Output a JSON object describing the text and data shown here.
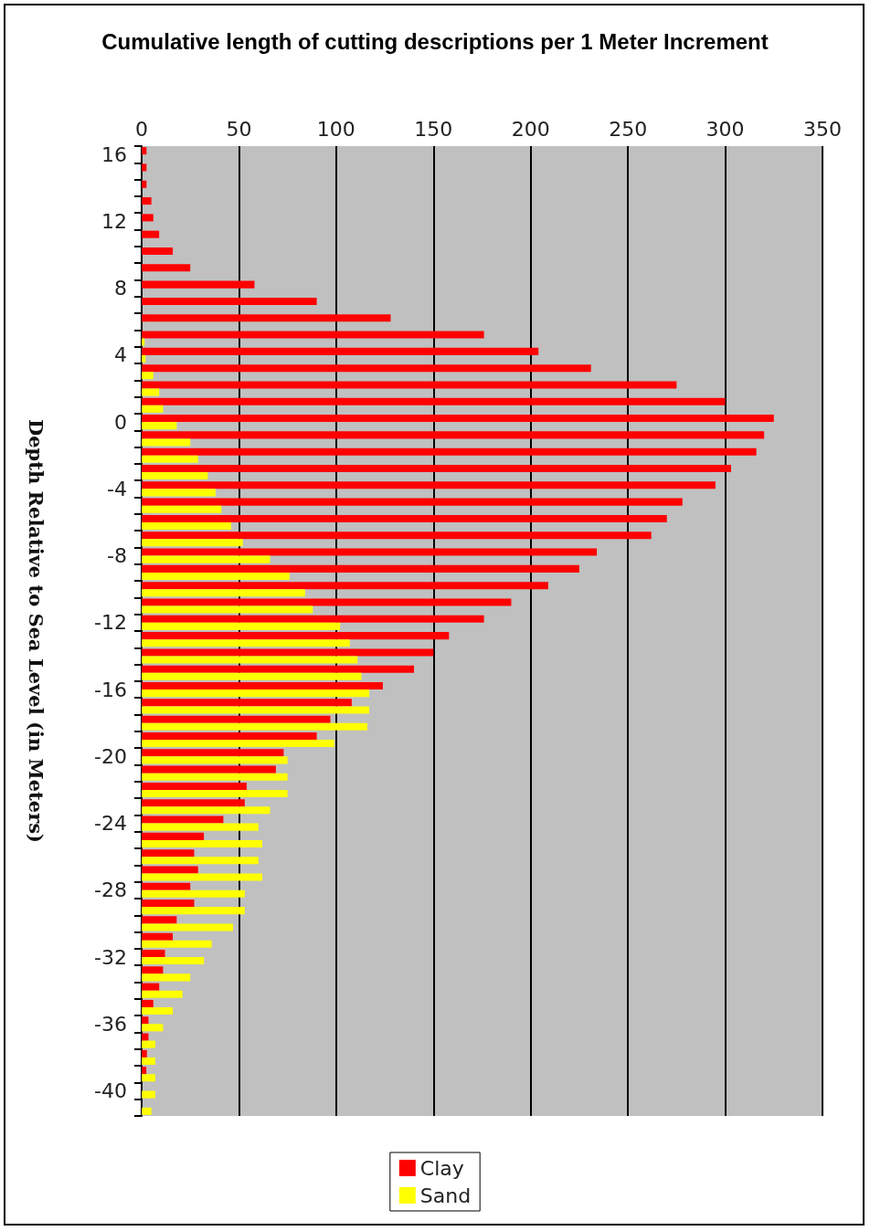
{
  "chart_data": {
    "type": "bar",
    "orientation": "horizontal",
    "title": "Cumulative length of cutting descriptions per 1 Meter Increment",
    "ylabel": "Depth Relative to Sea Level (in Meters)",
    "categories": [
      "16",
      null,
      null,
      null,
      "12",
      null,
      null,
      null,
      "8",
      null,
      null,
      null,
      "4",
      null,
      null,
      null,
      "0",
      null,
      null,
      null,
      "-4",
      null,
      null,
      null,
      "-8",
      null,
      null,
      null,
      "-12",
      null,
      null,
      null,
      "-16",
      null,
      null,
      null,
      "-20",
      null,
      null,
      null,
      "-24",
      null,
      null,
      null,
      "-28",
      null,
      null,
      null,
      "-32",
      null,
      null,
      null,
      "-36",
      null,
      null,
      null,
      "-40",
      null
    ],
    "series": [
      {
        "name": "Clay",
        "color": "#ff0000",
        "values": [
          2.5,
          2.5,
          2.5,
          5,
          6,
          9,
          16,
          25,
          58,
          90,
          128,
          176,
          204,
          231,
          275,
          300,
          325,
          320,
          316,
          303,
          295,
          278,
          270,
          262,
          234,
          225,
          209,
          190,
          176,
          158,
          150,
          140,
          124,
          108,
          97,
          90,
          73,
          69,
          54,
          53,
          42,
          32,
          27,
          29,
          25,
          27,
          18,
          16,
          12,
          11,
          9,
          6,
          3.5,
          3.5,
          2.7,
          2.4,
          0,
          0
        ]
      },
      {
        "name": "Sand",
        "color": "#ffff00",
        "values": [
          0,
          0,
          0,
          0,
          0,
          0,
          0,
          0,
          0,
          0,
          0,
          1.5,
          2,
          6,
          9,
          11,
          18,
          25,
          29,
          34,
          38,
          41,
          46,
          52,
          66,
          76,
          84,
          88,
          102,
          107,
          111,
          113,
          117,
          117,
          116,
          99,
          75,
          75,
          75,
          66,
          60,
          62,
          60,
          62,
          53,
          53,
          47,
          36,
          32,
          25,
          21,
          16,
          11,
          7,
          7,
          7,
          7,
          5
        ]
      }
    ],
    "xlim": [
      0,
      350
    ],
    "xticks": [
      0,
      50,
      100,
      150,
      200,
      250,
      300,
      350
    ],
    "grid": "x",
    "legend": "bottom"
  }
}
